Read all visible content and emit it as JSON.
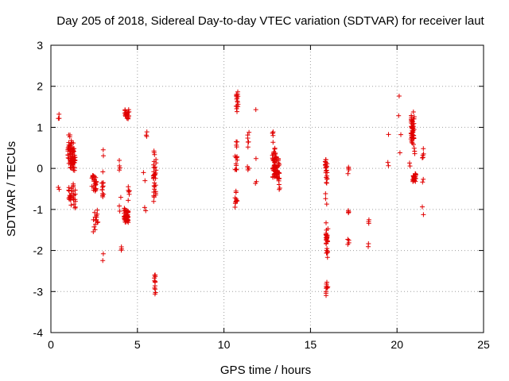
{
  "chart_data": {
    "type": "scatter",
    "title": "Day 205 of 2018, Sidereal Day-to-day VTEC variation (SDTVAR) for receiver laut",
    "xlabel": "GPS time / hours",
    "ylabel": "SDTVAR / TECUs",
    "xlim": [
      0,
      25
    ],
    "ylim": [
      -4,
      3
    ],
    "xticks": [
      0,
      5,
      10,
      15,
      20,
      25
    ],
    "yticks": [
      -4,
      -3,
      -2,
      -1,
      0,
      1,
      2,
      3
    ],
    "xtick_labels": [
      "0",
      "5",
      "10",
      "15",
      "20",
      "25"
    ],
    "ytick_labels": [
      "-4",
      "-3",
      "-2",
      "-1",
      "0",
      "1",
      "2",
      "3"
    ],
    "grid": true,
    "marker": "+",
    "series_color": "#e00000",
    "clusters": [
      {
        "x": 0.45,
        "xs": 0.03,
        "ymin": 1.15,
        "ymax": 1.35,
        "n": 3
      },
      {
        "x": 0.45,
        "xs": 0.03,
        "ymin": -0.55,
        "ymax": -0.45,
        "n": 2
      },
      {
        "x": 1.05,
        "xs": 0.08,
        "ymin": 0.1,
        "ymax": 0.95,
        "n": 20
      },
      {
        "x": 1.2,
        "xs": 0.1,
        "ymin": -0.2,
        "ymax": 0.75,
        "n": 40
      },
      {
        "x": 1.3,
        "xs": 0.1,
        "ymin": -0.15,
        "ymax": 0.55,
        "n": 30
      },
      {
        "x": 1.1,
        "xs": 0.1,
        "ymin": -0.95,
        "ymax": -0.4,
        "n": 18
      },
      {
        "x": 1.35,
        "xs": 0.07,
        "ymin": -1.05,
        "ymax": -0.3,
        "n": 15
      },
      {
        "x": 2.5,
        "xs": 0.15,
        "ymin": -0.6,
        "ymax": -0.05,
        "n": 28
      },
      {
        "x": 2.6,
        "xs": 0.15,
        "ymin": -1.45,
        "ymax": -1.0,
        "n": 12
      },
      {
        "x": 2.5,
        "xs": 0.06,
        "ymin": -1.6,
        "ymax": -1.4,
        "n": 3
      },
      {
        "x": 3.0,
        "xs": 0.06,
        "ymin": 0.3,
        "ymax": 0.55,
        "n": 2
      },
      {
        "x": 3.0,
        "xs": 0.06,
        "ymin": -0.9,
        "ymax": -0.05,
        "n": 12
      },
      {
        "x": 3.0,
        "xs": 0.05,
        "ymin": -2.25,
        "ymax": -2.05,
        "n": 2
      },
      {
        "x": 3.95,
        "xs": 0.05,
        "ymin": -0.1,
        "ymax": 0.3,
        "n": 4
      },
      {
        "x": 4.0,
        "xs": 0.08,
        "ymin": -2.05,
        "ymax": -1.9,
        "n": 3
      },
      {
        "x": 4.0,
        "xs": 0.05,
        "ymin": -1.05,
        "ymax": -0.7,
        "n": 3
      },
      {
        "x": 4.4,
        "xs": 0.12,
        "ymin": 1.15,
        "ymax": 1.5,
        "n": 22
      },
      {
        "x": 4.35,
        "xs": 0.12,
        "ymin": -1.4,
        "ymax": -0.95,
        "n": 45
      },
      {
        "x": 4.5,
        "xs": 0.05,
        "ymin": -0.8,
        "ymax": -0.35,
        "n": 6
      },
      {
        "x": 5.5,
        "xs": 0.05,
        "ymin": 0.7,
        "ymax": 0.9,
        "n": 3
      },
      {
        "x": 5.4,
        "xs": 0.05,
        "ymin": -0.3,
        "ymax": -0.1,
        "n": 2
      },
      {
        "x": 5.45,
        "xs": 0.05,
        "ymin": -1.05,
        "ymax": -0.95,
        "n": 2
      },
      {
        "x": 6.0,
        "xs": 0.08,
        "ymin": -0.9,
        "ymax": 0.5,
        "n": 35
      },
      {
        "x": 6.0,
        "xs": 0.05,
        "ymin": -3.2,
        "ymax": -2.4,
        "n": 12
      },
      {
        "x": 10.75,
        "xs": 0.07,
        "ymin": 1.35,
        "ymax": 2.0,
        "n": 16
      },
      {
        "x": 10.7,
        "xs": 0.07,
        "ymin": -0.2,
        "ymax": 0.7,
        "n": 14
      },
      {
        "x": 10.7,
        "xs": 0.07,
        "ymin": -1.0,
        "ymax": -0.5,
        "n": 10
      },
      {
        "x": 11.4,
        "xs": 0.06,
        "ymin": 0.4,
        "ymax": 1.0,
        "n": 6
      },
      {
        "x": 11.4,
        "xs": 0.06,
        "ymin": -0.1,
        "ymax": 0.1,
        "n": 3
      },
      {
        "x": 11.85,
        "xs": 0.04,
        "ymin": 1.4,
        "ymax": 1.45,
        "n": 1
      },
      {
        "x": 11.85,
        "xs": 0.04,
        "ymin": 0.2,
        "ymax": 0.3,
        "n": 1
      },
      {
        "x": 11.85,
        "xs": 0.04,
        "ymin": -0.4,
        "ymax": -0.3,
        "n": 2
      },
      {
        "x": 12.9,
        "xs": 0.1,
        "ymin": -0.4,
        "ymax": 0.55,
        "n": 45
      },
      {
        "x": 13.1,
        "xs": 0.1,
        "ymin": -0.45,
        "ymax": 0.3,
        "n": 35
      },
      {
        "x": 12.8,
        "xs": 0.05,
        "ymin": 0.6,
        "ymax": 1.0,
        "n": 5
      },
      {
        "x": 13.2,
        "xs": 0.05,
        "ymin": -0.55,
        "ymax": -0.45,
        "n": 2
      },
      {
        "x": 15.9,
        "xs": 0.06,
        "ymin": -0.4,
        "ymax": 0.35,
        "n": 22
      },
      {
        "x": 15.95,
        "xs": 0.06,
        "ymin": -2.3,
        "ymax": -1.2,
        "n": 28
      },
      {
        "x": 15.95,
        "xs": 0.06,
        "ymin": -3.1,
        "ymax": -2.7,
        "n": 10
      },
      {
        "x": 15.9,
        "xs": 0.05,
        "ymin": -0.9,
        "ymax": -0.5,
        "n": 3
      },
      {
        "x": 17.2,
        "xs": 0.05,
        "ymin": -0.2,
        "ymax": 0.1,
        "n": 4
      },
      {
        "x": 17.2,
        "xs": 0.05,
        "ymin": -1.1,
        "ymax": -1.0,
        "n": 4
      },
      {
        "x": 17.2,
        "xs": 0.05,
        "ymin": -1.9,
        "ymax": -1.7,
        "n": 4
      },
      {
        "x": 18.35,
        "xs": 0.04,
        "ymin": -1.4,
        "ymax": -1.2,
        "n": 3
      },
      {
        "x": 18.35,
        "xs": 0.04,
        "ymin": -1.95,
        "ymax": -1.8,
        "n": 2
      },
      {
        "x": 19.5,
        "xs": 0.04,
        "ymin": 0.05,
        "ymax": 0.15,
        "n": 2
      },
      {
        "x": 19.5,
        "xs": 0.04,
        "ymin": 0.8,
        "ymax": 0.85,
        "n": 1
      },
      {
        "x": 20.1,
        "xs": 0.04,
        "ymin": 1.7,
        "ymax": 1.8,
        "n": 1
      },
      {
        "x": 20.1,
        "xs": 0.04,
        "ymin": 1.25,
        "ymax": 1.3,
        "n": 1
      },
      {
        "x": 20.2,
        "xs": 0.04,
        "ymin": 0.8,
        "ymax": 0.85,
        "n": 1
      },
      {
        "x": 20.2,
        "xs": 0.04,
        "ymin": 0.35,
        "ymax": 0.4,
        "n": 1
      },
      {
        "x": 20.9,
        "xs": 0.1,
        "ymin": 0.55,
        "ymax": 1.4,
        "n": 50
      },
      {
        "x": 21.0,
        "xs": 0.1,
        "ymin": -0.35,
        "ymax": -0.1,
        "n": 25
      },
      {
        "x": 21.0,
        "xs": 0.05,
        "ymin": 0.35,
        "ymax": 0.6,
        "n": 4
      },
      {
        "x": 20.75,
        "xs": 0.04,
        "ymin": 0.05,
        "ymax": 0.15,
        "n": 2
      },
      {
        "x": 21.5,
        "xs": 0.04,
        "ymin": 0.1,
        "ymax": 0.55,
        "n": 5
      },
      {
        "x": 21.5,
        "xs": 0.04,
        "ymin": -0.35,
        "ymax": -0.25,
        "n": 2
      },
      {
        "x": 21.5,
        "xs": 0.04,
        "ymin": -1.15,
        "ymax": -0.9,
        "n": 2
      }
    ]
  }
}
